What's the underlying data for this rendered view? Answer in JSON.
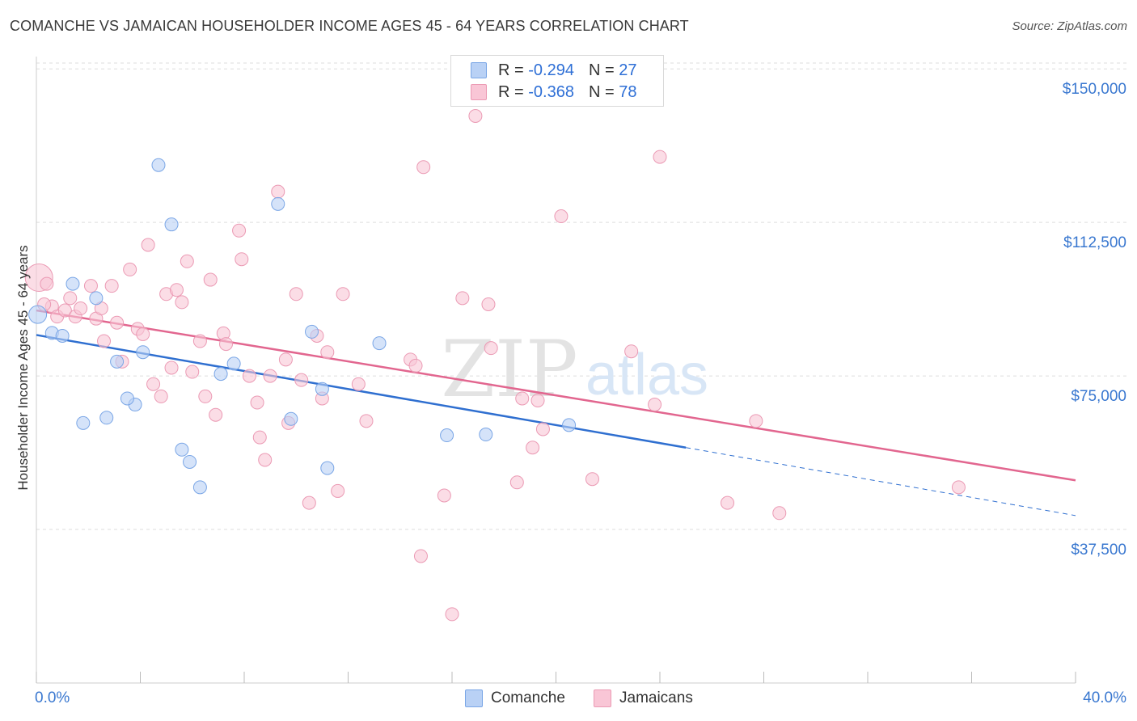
{
  "title": "COMANCHE VS JAMAICAN HOUSEHOLDER INCOME AGES 45 - 64 YEARS CORRELATION CHART",
  "source": "Source: ZipAtlas.com",
  "watermark": {
    "zip": "ZIP",
    "atlas": "atlas"
  },
  "legend_top": [
    {
      "r_label": "R =",
      "r_value": "-0.294",
      "n_label": "N =",
      "n_value": "27"
    },
    {
      "r_label": "R =",
      "r_value": "-0.368",
      "n_label": "N =",
      "n_value": "78"
    }
  ],
  "legend_bottom": [
    {
      "name": "Comanche"
    },
    {
      "name": "Jamaicans"
    }
  ],
  "colors": {
    "comanche_fill": "#b9d1f5",
    "comanche_stroke": "#7aa6e6",
    "comanche_line": "#2f6fd0",
    "jamaican_fill": "#f9c6d6",
    "jamaican_stroke": "#eb9ab4",
    "jamaican_line": "#e2668f",
    "axis_text": "#3a78d0",
    "grid": "#dddddd"
  },
  "chart_data": {
    "type": "scatter",
    "title": "COMANCHE VS JAMAICAN HOUSEHOLDER INCOME AGES 45 - 64 YEARS CORRELATION CHART",
    "xlabel": "",
    "ylabel": "Householder Income Ages 45 - 64 years",
    "xlim": [
      0,
      40
    ],
    "ylim": [
      0,
      153000
    ],
    "x_tick_labels": [
      "0.0%",
      "40.0%"
    ],
    "y_ticks": [
      37500,
      75000,
      112500,
      150000
    ],
    "y_tick_labels": [
      "$37,500",
      "$75,000",
      "$112,500",
      "$150,000"
    ],
    "grid": true,
    "legend_position": "top-center",
    "series": [
      {
        "name": "Comanche",
        "points": [
          [
            0.05,
            90000
          ],
          [
            0.6,
            85500
          ],
          [
            1.0,
            84800
          ],
          [
            1.4,
            97500
          ],
          [
            2.3,
            94000
          ],
          [
            1.8,
            63500
          ],
          [
            2.7,
            64800
          ],
          [
            3.1,
            78500
          ],
          [
            3.8,
            68000
          ],
          [
            4.1,
            80800
          ],
          [
            3.5,
            69500
          ],
          [
            4.7,
            126500
          ],
          [
            5.2,
            112000
          ],
          [
            5.6,
            57000
          ],
          [
            5.9,
            54000
          ],
          [
            6.3,
            47800
          ],
          [
            7.1,
            75500
          ],
          [
            7.6,
            78000
          ],
          [
            9.3,
            117000
          ],
          [
            9.8,
            64500
          ],
          [
            10.6,
            85800
          ],
          [
            11.0,
            71800
          ],
          [
            11.2,
            52500
          ],
          [
            13.2,
            83000
          ],
          [
            15.8,
            60500
          ],
          [
            17.3,
            60700
          ],
          [
            20.5,
            63000
          ]
        ],
        "trend": {
          "x": [
            0,
            25
          ],
          "y": [
            85000,
            57500
          ]
        },
        "trend_extension": {
          "x": [
            25,
            40
          ],
          "y": [
            57500,
            40900
          ]
        }
      },
      {
        "name": "Jamaicans",
        "points": [
          [
            0.1,
            99000
          ],
          [
            0.4,
            97500
          ],
          [
            0.6,
            92000
          ],
          [
            0.8,
            89500
          ],
          [
            1.1,
            91000
          ],
          [
            1.3,
            94000
          ],
          [
            1.5,
            89500
          ],
          [
            1.7,
            91500
          ],
          [
            2.1,
            97000
          ],
          [
            2.3,
            89000
          ],
          [
            2.5,
            91500
          ],
          [
            2.6,
            83500
          ],
          [
            2.9,
            97000
          ],
          [
            3.1,
            88000
          ],
          [
            3.3,
            78500
          ],
          [
            3.6,
            101000
          ],
          [
            3.9,
            86500
          ],
          [
            4.1,
            85200
          ],
          [
            4.3,
            107000
          ],
          [
            4.5,
            73000
          ],
          [
            4.8,
            70000
          ],
          [
            5.0,
            95000
          ],
          [
            5.2,
            77000
          ],
          [
            5.4,
            96000
          ],
          [
            5.6,
            93000
          ],
          [
            5.8,
            103000
          ],
          [
            6.0,
            76000
          ],
          [
            6.3,
            83500
          ],
          [
            6.5,
            70000
          ],
          [
            6.7,
            98500
          ],
          [
            6.9,
            65500
          ],
          [
            7.2,
            85400
          ],
          [
            7.3,
            82800
          ],
          [
            7.8,
            110500
          ],
          [
            7.9,
            103500
          ],
          [
            8.2,
            75000
          ],
          [
            8.5,
            68500
          ],
          [
            8.6,
            60000
          ],
          [
            8.8,
            54500
          ],
          [
            9.0,
            75000
          ],
          [
            9.3,
            120000
          ],
          [
            9.6,
            79000
          ],
          [
            9.7,
            63500
          ],
          [
            10.0,
            95000
          ],
          [
            10.2,
            74000
          ],
          [
            10.5,
            44000
          ],
          [
            10.8,
            84800
          ],
          [
            11.0,
            69500
          ],
          [
            11.2,
            80800
          ],
          [
            11.6,
            46900
          ],
          [
            11.8,
            95000
          ],
          [
            12.4,
            73000
          ],
          [
            12.7,
            64000
          ],
          [
            14.4,
            79000
          ],
          [
            14.6,
            77500
          ],
          [
            14.8,
            31000
          ],
          [
            14.9,
            126000
          ],
          [
            15.7,
            45800
          ],
          [
            16.0,
            16800
          ],
          [
            16.4,
            94000
          ],
          [
            16.9,
            138500
          ],
          [
            17.4,
            92500
          ],
          [
            17.5,
            81800
          ],
          [
            18.5,
            49000
          ],
          [
            18.7,
            69500
          ],
          [
            19.1,
            57500
          ],
          [
            19.3,
            69000
          ],
          [
            19.5,
            62000
          ],
          [
            20.2,
            114000
          ],
          [
            21.4,
            49800
          ],
          [
            22.9,
            81000
          ],
          [
            23.8,
            68000
          ],
          [
            24.0,
            128500
          ],
          [
            26.6,
            44000
          ],
          [
            27.7,
            64000
          ],
          [
            28.6,
            41500
          ],
          [
            35.5,
            47800
          ],
          [
            0.3,
            92500
          ]
        ],
        "trend": {
          "x": [
            0,
            40
          ],
          "y": [
            91000,
            49500
          ]
        }
      }
    ]
  }
}
